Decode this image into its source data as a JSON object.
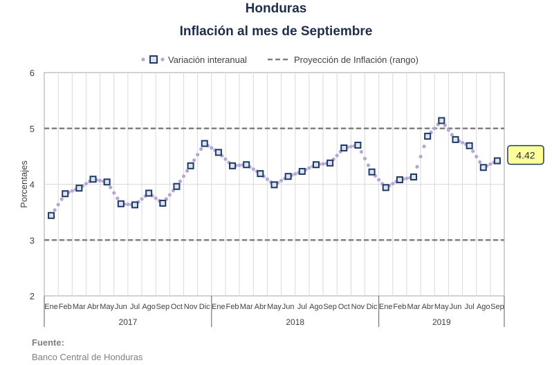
{
  "chart_data": {
    "type": "line",
    "title": "Honduras",
    "subtitle": "Inflación al mes de Septiembre",
    "ylabel": "Porcentajes",
    "ylim": [
      2,
      6
    ],
    "yticks": [
      "2",
      "3",
      "4",
      "5",
      "6"
    ],
    "grid": true,
    "legend_position": "top",
    "month_labels": [
      "Ene",
      "Feb",
      "Mar",
      "Abr",
      "May",
      "Jun",
      "Jul",
      "Ago",
      "Sep",
      "Oct",
      "Nov",
      "Dic"
    ],
    "years": [
      "2017",
      "2018",
      "2019"
    ],
    "months_per_year": [
      12,
      12,
      9
    ],
    "series": [
      {
        "name": "Variación interanual",
        "color": "#1f3864",
        "dot_color": "#b4a7d6",
        "values": [
          3.44,
          3.83,
          3.93,
          4.09,
          4.04,
          3.65,
          3.63,
          3.84,
          3.66,
          3.96,
          4.33,
          4.73,
          4.57,
          4.33,
          4.35,
          4.19,
          3.99,
          4.14,
          4.23,
          4.35,
          4.38,
          4.65,
          4.7,
          4.22,
          3.94,
          4.08,
          4.13,
          4.86,
          5.14,
          4.8,
          4.69,
          4.3,
          4.42
        ]
      },
      {
        "name": "Proyección de Inflación (rango)",
        "color": "#808080",
        "style": "dashed",
        "lower": 3,
        "upper": 5
      }
    ],
    "callout": "4.42"
  },
  "source": {
    "label": "Fuente:",
    "text": "Banco Central de Honduras"
  }
}
